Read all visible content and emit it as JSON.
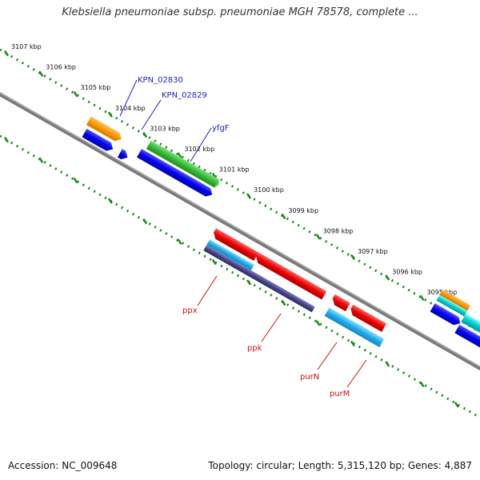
{
  "title": "Klebsiella pneumoniae subsp. pneumoniae MGH 78578, complete ...",
  "footer": {
    "accession": "Accession: NC_009648",
    "topology": "Topology: circular; Length: 5,315,120 bp; Genes: 4,887"
  },
  "colors": {
    "backbone": "#808080",
    "ticks": "#1a8a1a",
    "label_blue": "#2020cc",
    "label_red": "#cc1111"
  },
  "ticks": [
    "3107 kbp",
    "3106 kbp",
    "3105 kbp",
    "3104 kbp",
    "3103 kbp",
    "3102 kbp",
    "3101 kbp",
    "3100 kbp",
    "3099 kbp",
    "3098 kbp",
    "3097 kbp",
    "3096 kbp",
    "3095 kbp"
  ],
  "gene_labels": {
    "KPN_02830": "KPN_02830",
    "KPN_02829": "KPN_02829",
    "yfgF": "yfgF",
    "ppx": "ppx",
    "ppk": "ppk",
    "purN": "purN",
    "purM": "purM"
  }
}
